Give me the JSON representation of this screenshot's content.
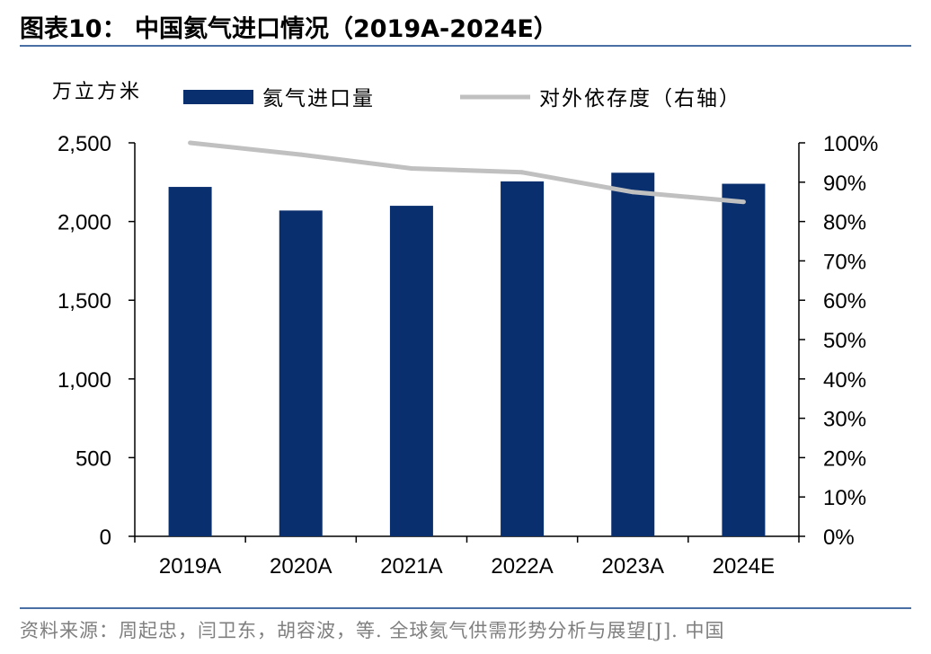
{
  "figure": {
    "title": "图表10：  中国氦气进口情况（2019A-2024E）",
    "source": "资料来源：周起忠，闫卫东，胡容波，等. 全球氦气供需形势分析与展望[J]. 中国"
  },
  "chart_data": {
    "type": "bar",
    "categories": [
      "2019A",
      "2020A",
      "2021A",
      "2022A",
      "2023A",
      "2024E"
    ],
    "y_left_unit": "万立方米",
    "y_left_ticks": [
      "0",
      "500",
      "1,000",
      "1,500",
      "2,000",
      "2,500"
    ],
    "y_left_lim": [
      0,
      2500
    ],
    "y_right_ticks": [
      "0%",
      "10%",
      "20%",
      "30%",
      "40%",
      "50%",
      "60%",
      "70%",
      "80%",
      "90%",
      "100%"
    ],
    "y_right_lim": [
      0,
      1
    ],
    "series": [
      {
        "name": "氦气进口量",
        "type": "bar",
        "axis": "left",
        "color": "#0a2f6e",
        "values": [
          2220,
          2070,
          2100,
          2255,
          2310,
          2240
        ]
      },
      {
        "name": "对外依存度（右轴）",
        "type": "line",
        "axis": "right",
        "color": "#c0c0c0",
        "values": [
          1.0,
          0.97,
          0.935,
          0.925,
          0.875,
          0.85
        ]
      }
    ],
    "legend_position": "top",
    "grid": false
  }
}
